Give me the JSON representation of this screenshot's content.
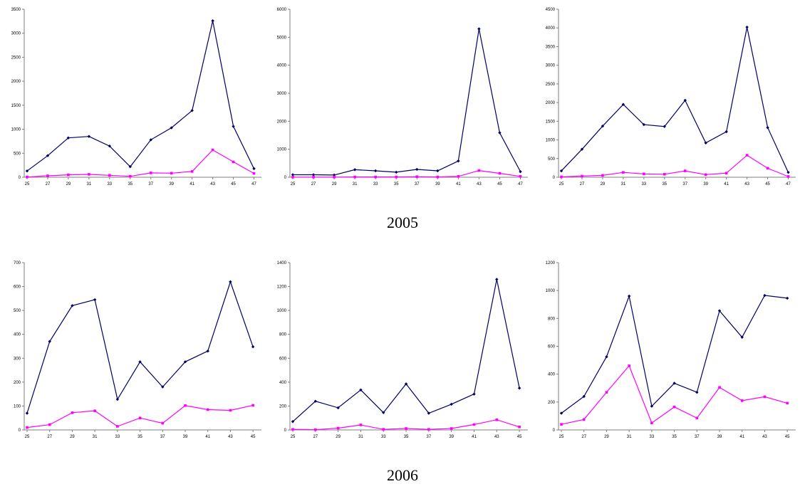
{
  "colors": {
    "series_a": "#000066",
    "series_b": "#ff00ff",
    "axis": "#7f7f7f"
  },
  "groups": [
    {
      "label": "2005"
    },
    {
      "label": "2006"
    }
  ],
  "chart_data": [
    {
      "type": "line",
      "year": "2005",
      "x": [
        25,
        27,
        29,
        31,
        33,
        35,
        37,
        39,
        41,
        43,
        45,
        47
      ],
      "ylim": [
        0,
        3500
      ],
      "yticks": [
        0,
        500,
        1000,
        1500,
        2000,
        2500,
        3000,
        3500
      ],
      "grid": false,
      "series": [
        {
          "values": [
            130,
            450,
            820,
            850,
            650,
            220,
            780,
            1030,
            1390,
            3260,
            1060,
            180
          ]
        },
        {
          "values": [
            5,
            30,
            50,
            60,
            40,
            20,
            90,
            85,
            120,
            570,
            320,
            80
          ]
        }
      ]
    },
    {
      "type": "line",
      "year": "2005",
      "x": [
        25,
        27,
        29,
        31,
        33,
        35,
        37,
        39,
        41,
        43,
        45,
        47
      ],
      "ylim": [
        0,
        6000
      ],
      "yticks": [
        0,
        1000,
        2000,
        3000,
        4000,
        5000,
        6000
      ],
      "grid": false,
      "series": [
        {
          "values": [
            90,
            90,
            80,
            270,
            230,
            180,
            280,
            230,
            580,
            5300,
            1590,
            200
          ]
        },
        {
          "values": [
            5,
            5,
            5,
            10,
            10,
            10,
            20,
            10,
            30,
            240,
            140,
            30
          ]
        }
      ]
    },
    {
      "type": "line",
      "year": "2005",
      "x": [
        25,
        27,
        29,
        31,
        33,
        35,
        37,
        39,
        41,
        43,
        45,
        47
      ],
      "ylim": [
        0,
        4500
      ],
      "yticks": [
        0,
        500,
        1000,
        1500,
        2000,
        2500,
        3000,
        3500,
        4000,
        4500
      ],
      "grid": false,
      "series": [
        {
          "values": [
            170,
            750,
            1370,
            1950,
            1410,
            1360,
            2060,
            920,
            1220,
            4020,
            1330,
            130
          ]
        },
        {
          "values": [
            10,
            30,
            50,
            130,
            90,
            80,
            170,
            70,
            110,
            590,
            240,
            20
          ]
        }
      ]
    },
    {
      "type": "line",
      "year": "2006",
      "x": [
        25,
        27,
        29,
        31,
        33,
        35,
        37,
        39,
        41,
        43,
        45
      ],
      "ylim": [
        0,
        700
      ],
      "yticks": [
        0,
        100,
        200,
        300,
        400,
        500,
        600,
        700
      ],
      "grid": false,
      "series": [
        {
          "values": [
            70,
            370,
            520,
            545,
            128,
            285,
            180,
            285,
            330,
            620,
            348
          ]
        },
        {
          "values": [
            10,
            22,
            72,
            80,
            15,
            50,
            28,
            102,
            85,
            82,
            103
          ]
        }
      ]
    },
    {
      "type": "line",
      "year": "2006",
      "x": [
        25,
        27,
        29,
        31,
        33,
        35,
        37,
        39,
        41,
        43,
        45
      ],
      "ylim": [
        0,
        1400
      ],
      "yticks": [
        0,
        200,
        400,
        600,
        800,
        1000,
        1200,
        1400
      ],
      "grid": false,
      "series": [
        {
          "values": [
            70,
            240,
            185,
            335,
            145,
            385,
            140,
            215,
            300,
            1260,
            350
          ]
        },
        {
          "values": [
            5,
            2,
            15,
            42,
            5,
            12,
            5,
            12,
            45,
            85,
            25
          ]
        }
      ]
    },
    {
      "type": "line",
      "year": "2006",
      "x": [
        25,
        27,
        29,
        31,
        33,
        35,
        37,
        39,
        41,
        43,
        45
      ],
      "ylim": [
        0,
        1200
      ],
      "yticks": [
        0,
        200,
        400,
        600,
        800,
        1000,
        1200
      ],
      "grid": false,
      "series": [
        {
          "values": [
            120,
            240,
            525,
            960,
            170,
            335,
            270,
            855,
            665,
            965,
            945
          ]
        },
        {
          "values": [
            40,
            75,
            270,
            460,
            50,
            165,
            85,
            305,
            210,
            238,
            192
          ]
        }
      ]
    }
  ]
}
